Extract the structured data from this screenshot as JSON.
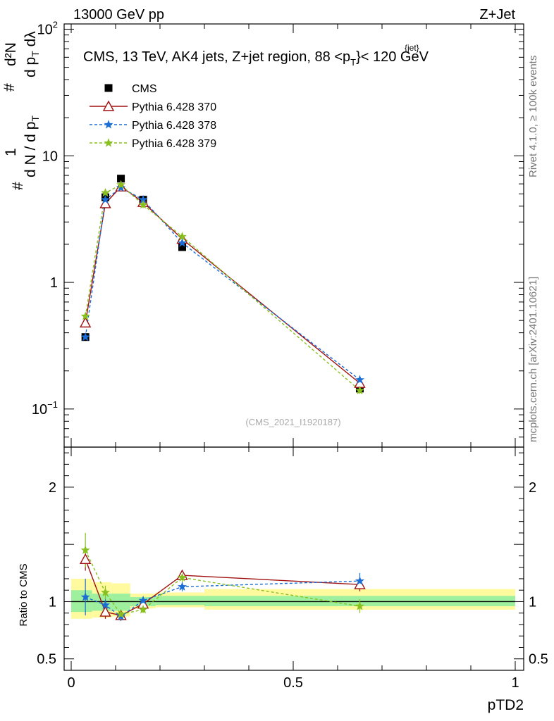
{
  "header": {
    "left": "13000 GeV pp",
    "right": "Z+Jet"
  },
  "side": {
    "rivet": "Rivet 4.1.0, ≥ 100k events",
    "mcplots": "mcplots.cern.ch [arXiv:2401.10621]"
  },
  "top_panel": {
    "title_main": "CMS, 13 TeV, AK4 jets, Z+jet region, 88 <p",
    "title_sub": "T",
    "title_sup": "{jet}",
    "title_tail": "}< 120 GeV",
    "watermark": "(CMS_2021_I1920187)",
    "ylabel_hash": "#",
    "ylabel_one": "1",
    "ylabel_den": "d N / d p",
    "ylabel_den_sub": "T",
    "ylabel_num": "d²N",
    "ylabel_num_den": "d p",
    "ylabel_num_den_sub": "T",
    "ylabel_num_den_tail": " dλ",
    "yticks": [
      {
        "v": 0.1,
        "base": "10",
        "exp": "−1"
      },
      {
        "v": 1,
        "base": "1",
        "exp": ""
      },
      {
        "v": 10,
        "base": "10",
        "exp": ""
      },
      {
        "v": 100,
        "base": "10",
        "exp": "2"
      }
    ]
  },
  "ratio_panel": {
    "ylabel": "Ratio to CMS",
    "yticks": [
      {
        "v": 0.5,
        "label": "0.5"
      },
      {
        "v": 1,
        "label": "1"
      },
      {
        "v": 2,
        "label": "2"
      }
    ]
  },
  "legend": {
    "items": [
      {
        "label": "CMS",
        "color": "#000000"
      },
      {
        "label": "Pythia 6.428 370",
        "color": "#a01010"
      },
      {
        "label": "Pythia 6.428 378",
        "color": "#1a6ed6"
      },
      {
        "label": "Pythia 6.428 379",
        "color": "#88c020"
      }
    ]
  },
  "chart_data": {
    "type": "line",
    "xlabel": "pTD2",
    "xlim": [
      0,
      1
    ],
    "xticks": [
      {
        "v": 0,
        "label": "0"
      },
      {
        "v": 0.5,
        "label": "0.5"
      },
      {
        "v": 1,
        "label": "1"
      }
    ],
    "ylim_main": [
      0.05,
      110
    ],
    "ylim_ratio": [
      0.4,
      2.35
    ],
    "x": [
      0.032,
      0.077,
      0.112,
      0.162,
      0.25,
      0.65
    ],
    "data": {
      "name": "CMS",
      "values": [
        0.37,
        4.7,
        6.6,
        4.5,
        1.9,
        0.145
      ],
      "band_bins": [
        {
          "x0": 0.0,
          "x1": 0.047,
          "y_lo": 0.85,
          "y_hi": 1.2,
          "g_lo": 0.91,
          "g_hi": 1.1
        },
        {
          "x0": 0.047,
          "x1": 0.09,
          "y_lo": 0.86,
          "y_hi": 1.17,
          "g_lo": 0.92,
          "g_hi": 1.07
        },
        {
          "x0": 0.09,
          "x1": 0.133,
          "y_lo": 0.87,
          "y_hi": 1.16,
          "g_lo": 0.92,
          "g_hi": 1.07
        },
        {
          "x0": 0.133,
          "x1": 0.19,
          "y_lo": 0.94,
          "y_hi": 1.07,
          "g_lo": 0.96,
          "g_hi": 1.04
        },
        {
          "x0": 0.19,
          "x1": 0.3,
          "y_lo": 0.95,
          "y_hi": 1.08,
          "g_lo": 0.97,
          "g_hi": 1.05
        },
        {
          "x0": 0.3,
          "x1": 1.0,
          "y_lo": 0.93,
          "y_hi": 1.11,
          "g_lo": 0.96,
          "g_hi": 1.05
        }
      ]
    },
    "series": [
      {
        "name": "Pythia 6.428 370",
        "color": "#a01010",
        "dash": "",
        "marker": "triangle",
        "values": [
          0.48,
          4.2,
          5.7,
          4.3,
          2.2,
          0.16
        ],
        "ratio": [
          1.37,
          0.91,
          0.88,
          0.98,
          1.23,
          1.15
        ],
        "ratio_err": [
          0.1,
          0.06,
          0.04,
          0.03,
          0.04,
          0.06
        ]
      },
      {
        "name": "Pythia 6.428 378",
        "color": "#1a6ed6",
        "dash": "4,3",
        "marker": "star",
        "values": [
          0.37,
          4.5,
          5.6,
          4.5,
          2.05,
          0.17
        ],
        "ratio": [
          1.04,
          0.97,
          0.87,
          1.01,
          1.13,
          1.18
        ],
        "ratio_err": [
          0.16,
          0.06,
          0.04,
          0.03,
          0.04,
          0.07
        ]
      },
      {
        "name": "Pythia 6.428 379",
        "color": "#88c020",
        "dash": "4,3",
        "marker": "star",
        "values": [
          0.54,
          5.1,
          5.9,
          4.1,
          2.3,
          0.14
        ],
        "ratio": [
          1.45,
          1.08,
          0.89,
          0.93,
          1.21,
          0.96
        ],
        "ratio_err": [
          0.15,
          0.06,
          0.04,
          0.03,
          0.04,
          0.06
        ]
      }
    ]
  }
}
